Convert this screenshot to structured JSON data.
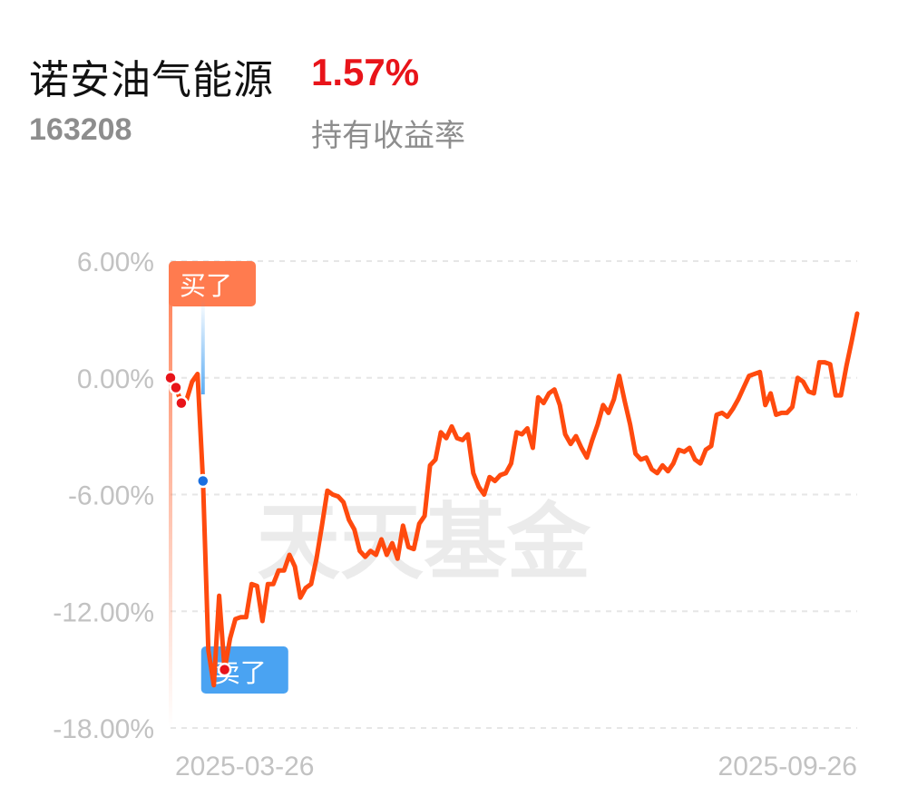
{
  "header": {
    "fund_name": "诺安油气能源",
    "fund_code": "163208",
    "return_value": "1.57%",
    "return_label": "持有收益率"
  },
  "watermark": "天天基金",
  "markers": {
    "buy_label": "买了",
    "sell_label": "卖了"
  },
  "colors": {
    "line": "#ff4a0e",
    "buy_flag": "#ff7b4f",
    "sell_flag": "#4aa3f2",
    "buy_dot": "#e8141a",
    "sell_dot": "#1a6fe0",
    "return_positive": "#e8141a",
    "gridline": "#e6e6e6"
  },
  "chart_data": {
    "type": "line",
    "ylim": [
      -18,
      6
    ],
    "y_ticks": [
      6,
      0,
      -6,
      -12,
      -18
    ],
    "y_tick_labels": [
      "6.00%",
      "0.00%",
      "-6.00%",
      "-12.00%",
      "-18.00%"
    ],
    "x_tick_labels": [
      "2025-03-26",
      "2025-09-26"
    ],
    "grid": "horizontal dashed",
    "series": [
      {
        "values": [
          0.0,
          -0.5,
          -1.3,
          -1.1,
          -0.2,
          0.2,
          -5.3,
          -14.0,
          -15.8,
          -11.2,
          -15.0,
          -13.4,
          -12.4,
          -12.3,
          -12.3,
          -10.6,
          -10.7,
          -12.5,
          -10.6,
          -10.6,
          -9.9,
          -9.9,
          -9.1,
          -9.7,
          -11.3,
          -10.8,
          -10.6,
          -9.3,
          -7.6,
          -5.8,
          -6.0,
          -6.1,
          -6.4,
          -7.3,
          -7.8,
          -8.9,
          -9.2,
          -8.9,
          -9.1,
          -8.3,
          -9.1,
          -8.5,
          -9.3,
          -7.6,
          -8.7,
          -8.8,
          -7.5,
          -7.1,
          -4.5,
          -4.2,
          -2.8,
          -3.1,
          -2.5,
          -3.1,
          -3.2,
          -2.9,
          -4.9,
          -5.6,
          -6.0,
          -5.1,
          -5.3,
          -5.0,
          -4.9,
          -4.4,
          -2.8,
          -2.9,
          -2.6,
          -3.6,
          -1.0,
          -1.3,
          -0.8,
          -0.6,
          -1.4,
          -2.9,
          -3.4,
          -3.0,
          -3.6,
          -4.1,
          -3.2,
          -2.4,
          -1.4,
          -1.8,
          -1.1,
          0.1,
          -1.2,
          -2.4,
          -3.9,
          -4.2,
          -4.1,
          -4.7,
          -4.9,
          -4.5,
          -4.8,
          -4.4,
          -3.7,
          -3.8,
          -3.6,
          -4.2,
          -4.4,
          -3.7,
          -3.5,
          -1.9,
          -1.8,
          -2.0,
          -1.6,
          -1.1,
          -0.5,
          0.1,
          0.2,
          0.3,
          -1.4,
          -0.8,
          -1.9,
          -1.8,
          -1.8,
          -1.5,
          0.0,
          -0.2,
          -0.7,
          -0.8,
          0.8,
          0.8,
          0.7,
          -0.9,
          -0.9,
          0.6,
          1.9,
          3.3
        ]
      }
    ]
  }
}
